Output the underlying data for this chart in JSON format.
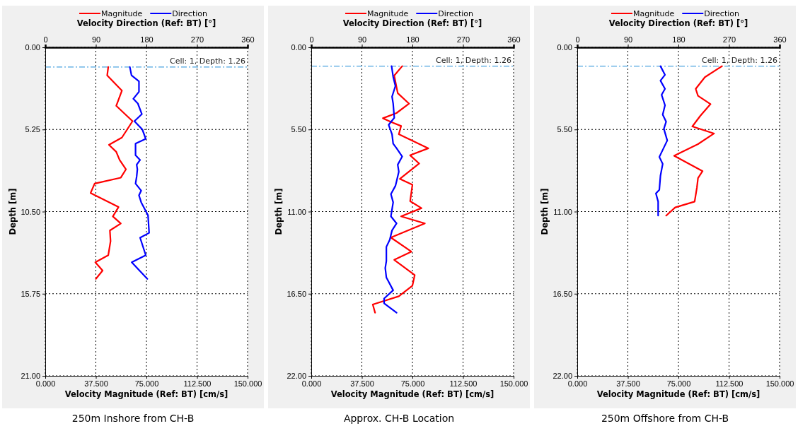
{
  "chart_data": [
    {
      "type": "line",
      "title": "250m Inshore from CH-B",
      "xlabel": "Velocity Magnitude (Ref: BT) [cm/s]",
      "x2label": "Velocity Direction (Ref: BT) [°]",
      "ylabel": "Depth [m]",
      "xlim": [
        0,
        150
      ],
      "xticks": [
        {
          "value": 0,
          "label": "0.000"
        },
        {
          "value": 37.5,
          "label": "37.500"
        },
        {
          "value": 75,
          "label": "75.000"
        },
        {
          "value": 112.5,
          "label": "112.500"
        },
        {
          "value": 150,
          "label": "150.000"
        }
      ],
      "x2lim": [
        0,
        360
      ],
      "x2ticks": [
        0,
        90,
        180,
        270,
        360
      ],
      "ylim": [
        21,
        0
      ],
      "yticks": [
        {
          "value": 0,
          "label": "0.00"
        },
        {
          "value": 5.25,
          "label": "5.25"
        },
        {
          "value": 10.5,
          "label": "10.50"
        },
        {
          "value": 15.75,
          "label": "15.75"
        },
        {
          "value": 21,
          "label": "21.00"
        }
      ],
      "grid": true,
      "legend": "top",
      "line_style": "solid",
      "marker": "none",
      "ref_lines": [
        {
          "axis": "y",
          "value": 1.26,
          "label": "Cell: 1, Depth: 1.26",
          "color": "#4aa3df",
          "line_style": "dashdot"
        }
      ],
      "series": [
        {
          "name": "Magnitude",
          "color": "#ff0000",
          "x": [
            46.7,
            45.9,
            56.8,
            52.6,
            64.7,
            56.8,
            47.2,
            52.6,
            55.1,
            59.8,
            56.0,
            36.6,
            33.6,
            54.3,
            50.1,
            56.0,
            47.9,
            48.4,
            46.7,
            37.1,
            42.5,
            37.5
          ],
          "values": [
            1.26,
            1.79,
            2.77,
            3.74,
            4.72,
            5.77,
            6.23,
            6.68,
            7.2,
            7.8,
            8.33,
            8.71,
            9.31,
            10.21,
            10.81,
            11.26,
            11.71,
            12.39,
            13.29,
            13.74,
            14.27,
            14.8
          ]
        },
        {
          "name": "Direction",
          "color": "#0000ff",
          "axis": "x2",
          "x": [
            150.5,
            153.4,
            166.7,
            166.7,
            156.6,
            164.7,
            171.9,
            158.6,
            172.7,
            178.8,
            160.6,
            160.6,
            168.7,
            162.6,
            163.9,
            162.6,
            160.6,
            170.7,
            166.7,
            170.7,
            182.8,
            184.8,
            168.7,
            178.8,
            153.8,
            181.6
          ],
          "values": [
            1.26,
            1.79,
            2.17,
            2.84,
            3.29,
            3.59,
            4.27,
            4.72,
            5.25,
            5.85,
            6.15,
            6.9,
            7.2,
            7.5,
            7.8,
            8.26,
            8.71,
            9.16,
            9.46,
            9.91,
            10.74,
            11.86,
            12.17,
            13.29,
            13.74,
            14.8
          ]
        }
      ]
    },
    {
      "type": "line",
      "title": "Approx. CH-B Location",
      "xlabel": "Velocity Magnitude (Ref: BT) [cm/s]",
      "x2label": "Velocity Direction (Ref: BT) [°]",
      "ylabel": "Depth [m]",
      "xlim": [
        0,
        150
      ],
      "xticks": [
        {
          "value": 0,
          "label": "0.000"
        },
        {
          "value": 37.5,
          "label": "37.500"
        },
        {
          "value": 75,
          "label": "75.000"
        },
        {
          "value": 112.5,
          "label": "112.500"
        },
        {
          "value": 150,
          "label": "150.000"
        }
      ],
      "x2lim": [
        0,
        360
      ],
      "x2ticks": [
        0,
        90,
        180,
        270,
        360
      ],
      "ylim": [
        22,
        0
      ],
      "yticks": [
        {
          "value": 0,
          "label": "0.00"
        },
        {
          "value": 5.5,
          "label": "5.50"
        },
        {
          "value": 11,
          "label": "11.00"
        },
        {
          "value": 16.5,
          "label": "16.50"
        },
        {
          "value": 22,
          "label": "22.00"
        }
      ],
      "grid": true,
      "legend": "top",
      "line_style": "solid",
      "marker": "none",
      "ref_lines": [
        {
          "axis": "y",
          "value": 1.26,
          "label": "Cell: 1, Depth: 1.26",
          "color": "#4aa3df",
          "line_style": "dashdot"
        }
      ],
      "series": [
        {
          "name": "Magnitude",
          "color": "#ff0000",
          "x": [
            67.4,
            61.5,
            64.1,
            72.5,
            63.2,
            53.1,
            59.9,
            66.6,
            64.9,
            86.8,
            73.3,
            80.0,
            65.7,
            75.0,
            73.3,
            81.7,
            66.6,
            84.2,
            59.0,
            74.2,
            61.5,
            76.7,
            75.0,
            64.9,
            45.6,
            47.3
          ],
          "values": [
            1.26,
            1.89,
            3.07,
            3.77,
            4.4,
            4.75,
            5.03,
            5.27,
            5.82,
            6.76,
            7.23,
            7.78,
            8.81,
            9.2,
            10.3,
            10.77,
            11.32,
            11.79,
            12.74,
            13.68,
            14.23,
            15.25,
            15.96,
            16.67,
            17.22,
            17.77
          ]
        },
        {
          "name": "Direction",
          "color": "#0000ff",
          "axis": "x2",
          "x": [
            142.9,
            145.7,
            149.7,
            143.7,
            145.7,
            147.7,
            137.6,
            143.7,
            145.7,
            151.8,
            161.8,
            153.8,
            155.8,
            151.8,
            149.7,
            141.7,
            145.7,
            141.7,
            151.8,
            143.7,
            139.6,
            133.6,
            133.6,
            131.6,
            133.6,
            145.7,
            129.6,
            129.6,
            151.8
          ],
          "values": [
            1.26,
            1.97,
            2.59,
            3.3,
            3.77,
            4.72,
            5.19,
            5.82,
            6.45,
            6.76,
            7.31,
            7.86,
            8.33,
            8.96,
            9.28,
            9.83,
            10.38,
            11.32,
            11.79,
            12.26,
            12.89,
            13.36,
            14.31,
            14.78,
            15.41,
            16.27,
            16.82,
            17.14,
            17.77
          ]
        }
      ]
    },
    {
      "type": "line",
      "title": "250m Offshore from CH-B",
      "xlabel": "Velocity Magnitude (Ref: BT) [cm/s]",
      "x2label": "Velocity Direction (Ref: BT) [°]",
      "ylabel": "Depth [m]",
      "xlim": [
        0,
        150
      ],
      "xticks": [
        {
          "value": 0,
          "label": "0.000"
        },
        {
          "value": 37.5,
          "label": "37.500"
        },
        {
          "value": 75,
          "label": "75.000"
        },
        {
          "value": 112.5,
          "label": "112.500"
        },
        {
          "value": 150,
          "label": "150.000"
        }
      ],
      "x2lim": [
        0,
        360
      ],
      "x2ticks": [
        0,
        90,
        180,
        270,
        360
      ],
      "ylim": [
        22,
        0
      ],
      "yticks": [
        {
          "value": 0,
          "label": "0.00"
        },
        {
          "value": 5.5,
          "label": "5.50"
        },
        {
          "value": 11,
          "label": "11.00"
        },
        {
          "value": 16.5,
          "label": "16.50"
        },
        {
          "value": 22,
          "label": "22.00"
        }
      ],
      "grid": true,
      "legend": "top",
      "line_style": "solid",
      "marker": "none",
      "ref_lines": [
        {
          "axis": "y",
          "value": 1.26,
          "label": "Cell: 1, Depth: 1.26",
          "color": "#4aa3df",
          "line_style": "dashdot"
        }
      ],
      "series": [
        {
          "name": "Magnitude",
          "color": "#ff0000",
          "x": [
            107.3,
            94.6,
            87.8,
            89.5,
            98.8,
            91.2,
            85.3,
            101.4,
            89.5,
            71.8,
            92.9,
            89.5,
            88.7,
            87.0,
            72.6,
            65.9
          ],
          "values": [
            1.26,
            2.0,
            2.78,
            3.25,
            3.8,
            4.59,
            5.3,
            5.77,
            6.48,
            7.26,
            8.29,
            8.76,
            9.39,
            10.33,
            10.72,
            11.27
          ]
        },
        {
          "name": "Direction",
          "color": "#0000ff",
          "axis": "x2",
          "x": [
            148.0,
            156.1,
            148.0,
            156.1,
            150.0,
            156.1,
            152.0,
            158.1,
            154.1,
            160.1,
            146.0,
            152.0,
            148.0,
            146.0,
            139.9,
            143.9,
            143.9
          ],
          "values": [
            1.26,
            1.84,
            2.23,
            2.78,
            3.18,
            3.88,
            4.51,
            4.98,
            5.46,
            6.24,
            7.34,
            7.81,
            8.6,
            9.54,
            9.78,
            10.33,
            11.27
          ]
        }
      ]
    }
  ]
}
